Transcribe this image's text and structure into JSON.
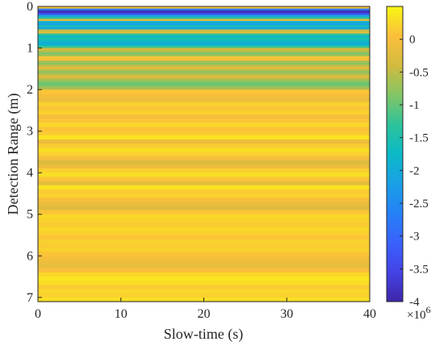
{
  "chart_data": {
    "type": "heatmap",
    "xlabel": "Slow-time (s)",
    "ylabel": "Detection Range (m)",
    "xlim": [
      0,
      40
    ],
    "ylim": [
      0,
      7.1
    ],
    "y_reversed": true,
    "xticks": [
      0,
      10,
      20,
      30,
      40
    ],
    "yticks": [
      0,
      1,
      2,
      3,
      4,
      5,
      6,
      7
    ],
    "colorbar": {
      "clim": [
        -4,
        0.5
      ],
      "ticks": [
        0,
        -0.5,
        -1,
        -1.5,
        -2,
        -2.5,
        -3,
        -3.5,
        -4
      ],
      "tick_labels": [
        "0",
        "-0.5",
        "-1",
        "-1.5",
        "-2",
        "-2.5",
        "-3",
        "-3.5",
        "-4"
      ],
      "multiplier": "×10",
      "exponent": "6",
      "colormap": "parula"
    },
    "range_profile": {
      "note_units": "value ×10^6 as function of detection range (m), constant across slow-time",
      "range": [
        0.0,
        0.05,
        0.1,
        0.15,
        0.2,
        0.25,
        0.3,
        0.35,
        0.4,
        0.45,
        0.5,
        0.55,
        0.6,
        0.65,
        0.7,
        0.75,
        0.8,
        0.85,
        0.9,
        0.95,
        1.0,
        1.05,
        1.1,
        1.15,
        1.2,
        1.25,
        1.3,
        1.35,
        1.4,
        1.45,
        1.5,
        1.55,
        1.6,
        1.65,
        1.7,
        1.75,
        1.8,
        1.85,
        1.9,
        1.95,
        2.0,
        2.1,
        2.2,
        2.3,
        2.4,
        2.5,
        2.6,
        2.7,
        2.8,
        2.9,
        3.0,
        3.1,
        3.2,
        3.3,
        3.4,
        3.5,
        3.6,
        3.7,
        3.8,
        3.9,
        4.0,
        4.1,
        4.2,
        4.3,
        4.4,
        4.5,
        4.6,
        4.7,
        4.8,
        4.9,
        5.0,
        5.1,
        5.2,
        5.3,
        5.4,
        5.5,
        5.6,
        5.7,
        5.8,
        5.9,
        6.0,
        6.1,
        6.2,
        6.3,
        6.4,
        6.5,
        6.6,
        6.7,
        6.8,
        6.9,
        7.0,
        7.1
      ],
      "values": [
        0.1,
        -2.8,
        -3.9,
        -3.4,
        -2.2,
        -1.4,
        -0.2,
        -1.9,
        -2.2,
        -1.6,
        -2.1,
        -0.5,
        -0.2,
        -1.3,
        -1.8,
        -1.5,
        -1.7,
        -2.0,
        -1.8,
        -1.2,
        -0.4,
        -0.5,
        -0.9,
        -0.7,
        0.1,
        0.0,
        -0.6,
        -0.8,
        -0.5,
        -0.2,
        -0.5,
        -0.8,
        -0.6,
        -0.3,
        -0.4,
        -0.7,
        -0.9,
        -1.0,
        -0.8,
        -0.6,
        0.1,
        0.0,
        -0.1,
        0.2,
        0.1,
        0.2,
        0.0,
        0.1,
        0.25,
        0.1,
        0.15,
        0.35,
        -0.1,
        0.15,
        0.3,
        0.2,
        0.0,
        -0.3,
        -0.1,
        0.2,
        0.3,
        0.1,
        -0.2,
        0.35,
        0.15,
        0.2,
        0.0,
        -0.15,
        -0.25,
        0.1,
        0.25,
        0.2,
        0.15,
        0.25,
        0.2,
        0.1,
        0.2,
        0.15,
        0.2,
        0.1,
        0.0,
        -0.1,
        -0.15,
        0.05,
        0.25,
        0.35,
        0.3,
        0.15,
        0.25,
        0.2,
        0.3,
        0.3
      ]
    }
  }
}
